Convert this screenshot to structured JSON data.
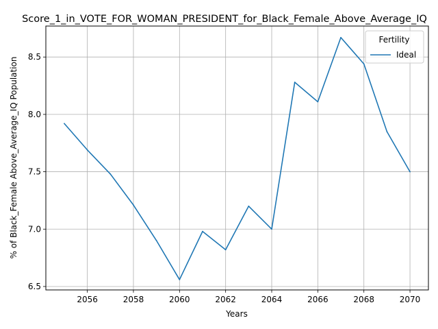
{
  "chart_data": {
    "type": "line",
    "title": "Score_1_in_VOTE_FOR_WOMAN_PRESIDENT_for_Black_Female_Above_Average_IQ",
    "xlabel": "Years",
    "ylabel": "% of Black_Female Above_Average_IQ Population",
    "xlim": [
      2054.2,
      2070.8
    ],
    "ylim": [
      6.47,
      8.77
    ],
    "xticks": [
      2056,
      2058,
      2060,
      2062,
      2064,
      2066,
      2068,
      2070
    ],
    "yticks": [
      6.5,
      7.0,
      7.5,
      8.0,
      8.5
    ],
    "grid": true,
    "legend": {
      "title": "Fertility",
      "placement": "top-right"
    },
    "series": [
      {
        "name": "Ideal",
        "color": "#1f77b4",
        "x": [
          2055,
          2056,
          2057,
          2058,
          2059,
          2060,
          2061,
          2062,
          2063,
          2064,
          2065,
          2066,
          2067,
          2068,
          2069,
          2070
        ],
        "values": [
          7.92,
          7.69,
          7.48,
          7.21,
          6.9,
          6.56,
          6.98,
          6.82,
          7.2,
          7.0,
          8.28,
          8.11,
          8.67,
          8.44,
          7.85,
          7.5
        ]
      }
    ]
  }
}
